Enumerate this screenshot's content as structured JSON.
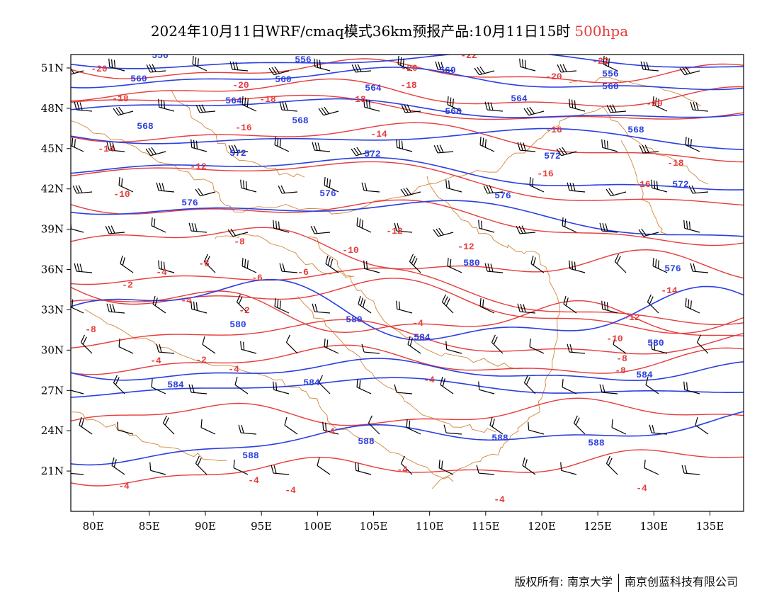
{
  "title": {
    "text": "2024年10月11日WRF/cmaq模式36km预报产品:10月11日15时",
    "level": "500hpa"
  },
  "colors": {
    "height_contour": "#2b3fe0",
    "temp_contour": "#e63c3c",
    "boundary": "#d2873a",
    "barb": "#000000",
    "frame": "#000000"
  },
  "axes": {
    "lon_ticks": [
      "80E",
      "85E",
      "90E",
      "95E",
      "100E",
      "105E",
      "110E",
      "115E",
      "120E",
      "125E",
      "130E",
      "135E"
    ],
    "lat_ticks": [
      "51N",
      "48N",
      "45N",
      "42N",
      "39N",
      "36N",
      "33N",
      "30N",
      "27N",
      "24N",
      "21N"
    ]
  },
  "map_extent": {
    "lon": [
      78,
      138
    ],
    "lat": [
      18,
      52
    ]
  },
  "height_labels": [
    "556",
    "560",
    "564",
    "568",
    "572",
    "576",
    "580",
    "584",
    "588"
  ],
  "temp_labels": [
    "-22",
    "-20",
    "-18",
    "-16",
    "-14",
    "-12",
    "-10",
    "-8",
    "-6",
    "-4",
    "-2"
  ],
  "footer": {
    "copyright": "版权所有: 南京大学",
    "company": "南京创蓝科技有限公司"
  }
}
